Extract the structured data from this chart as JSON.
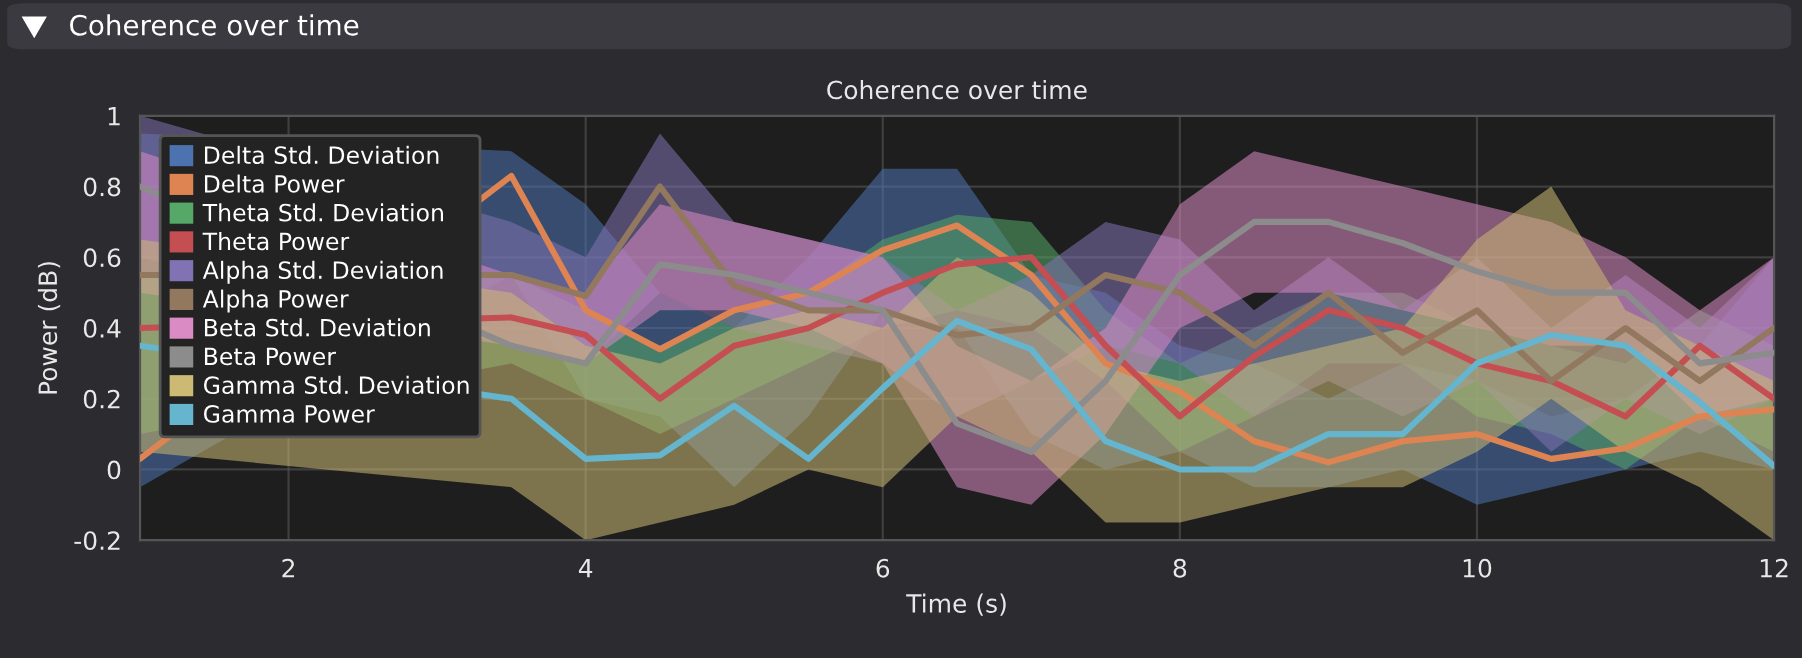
{
  "chart_data": {
    "type": "line",
    "title": "Coherence over time",
    "xlabel": "Time (s)",
    "ylabel": "Power (dB)",
    "annotations": [
      "Coherence over time"
    ],
    "x": [
      1,
      3.5,
      4,
      4.5,
      5,
      5.5,
      6,
      6.5,
      7,
      7.5,
      8,
      8.5,
      9,
      9.5,
      10,
      10.5,
      11,
      11.5,
      12
    ],
    "xlim": [
      1,
      12
    ],
    "xticks": [
      2,
      4,
      6,
      8,
      10,
      12
    ],
    "ylim": [
      -0.2,
      1
    ],
    "yticks": [
      -0.2,
      0,
      0.2,
      0.4,
      0.6,
      0.8,
      1
    ],
    "grid": true,
    "legend": "top left",
    "marker": "none",
    "line_style": "solid",
    "series": [
      {
        "name": "Delta Std. Deviation",
        "type": "area",
        "color": "#4c72b0",
        "values": [
          null,
          null,
          null,
          null,
          null,
          null,
          null,
          null,
          null,
          null,
          null,
          null,
          null,
          null,
          null,
          null,
          null,
          null,
          null
        ],
        "lower": [
          -0.05,
          0.55,
          0.2,
          0.15,
          -0.05,
          0.15,
          0.45,
          0.4,
          0.1,
          0.0,
          0.05,
          -0.05,
          -0.05,
          0.0,
          -0.1,
          -0.05,
          0.0,
          0.05,
          0.0
        ],
        "upper": [
          0.95,
          0.9,
          0.75,
          0.5,
          0.4,
          0.6,
          0.85,
          0.85,
          0.55,
          0.5,
          0.35,
          0.3,
          0.2,
          0.3,
          0.25,
          0.15,
          0.2,
          0.35,
          0.6
        ]
      },
      {
        "name": "Delta Power",
        "color": "#dd8452",
        "values": [
          0.03,
          0.83,
          0.45,
          0.34,
          0.45,
          0.5,
          0.62,
          0.69,
          0.55,
          0.3,
          0.22,
          0.08,
          0.02,
          0.08,
          0.1,
          0.03,
          0.06,
          0.15,
          0.17
        ]
      },
      {
        "name": "Theta Std. Deviation",
        "type": "area",
        "color": "#55a868",
        "values": [
          null,
          null,
          null,
          null,
          null,
          null,
          null,
          null,
          null,
          null,
          null,
          null,
          null,
          null,
          null,
          null,
          null,
          null,
          null
        ],
        "lower": [
          0.1,
          0.3,
          0.2,
          0.1,
          0.2,
          0.3,
          0.4,
          0.45,
          0.4,
          0.25,
          0.05,
          0.15,
          0.3,
          0.3,
          0.15,
          0.1,
          0.0,
          0.15,
          0.05
        ],
        "upper": [
          0.55,
          0.55,
          0.45,
          0.35,
          0.45,
          0.5,
          0.65,
          0.72,
          0.7,
          0.45,
          0.3,
          0.4,
          0.5,
          0.5,
          0.4,
          0.35,
          0.3,
          0.45,
          0.35
        ]
      },
      {
        "name": "Theta Power",
        "color": "#c44e52",
        "values": [
          0.4,
          0.43,
          0.38,
          0.2,
          0.35,
          0.4,
          0.5,
          0.58,
          0.6,
          0.35,
          0.15,
          0.32,
          0.45,
          0.4,
          0.3,
          0.25,
          0.15,
          0.35,
          0.2
        ]
      },
      {
        "name": "Alpha Std. Deviation",
        "type": "area",
        "color": "#8172b3",
        "values": [
          null,
          null,
          null,
          null,
          null,
          null,
          null,
          null,
          null,
          null,
          null,
          null,
          null,
          null,
          null,
          null,
          null,
          null,
          null
        ],
        "lower": [
          0.6,
          0.35,
          0.3,
          0.5,
          0.4,
          0.35,
          0.3,
          0.15,
          0.25,
          0.35,
          0.3,
          0.15,
          0.25,
          0.15,
          0.25,
          0.05,
          0.2,
          0.1,
          0.2
        ],
        "upper": [
          1.0,
          0.7,
          0.6,
          0.95,
          0.7,
          0.65,
          0.6,
          0.45,
          0.55,
          0.7,
          0.65,
          0.45,
          0.6,
          0.45,
          0.6,
          0.4,
          0.55,
          0.4,
          0.6
        ]
      },
      {
        "name": "Alpha Power",
        "color": "#937860",
        "values": [
          0.55,
          0.55,
          0.49,
          0.8,
          0.52,
          0.45,
          0.45,
          0.38,
          0.4,
          0.55,
          0.5,
          0.35,
          0.5,
          0.33,
          0.45,
          0.25,
          0.4,
          0.25,
          0.4
        ]
      },
      {
        "name": "Beta Std. Deviation",
        "type": "area",
        "color": "#da8bc3",
        "values": [
          null,
          null,
          null,
          null,
          null,
          null,
          null,
          null,
          null,
          null,
          null,
          null,
          null,
          null,
          null,
          null,
          null,
          null,
          null
        ],
        "lower": [
          0.5,
          0.35,
          0.3,
          0.45,
          0.45,
          0.4,
          0.3,
          -0.05,
          -0.1,
          0.1,
          0.4,
          0.5,
          0.5,
          0.45,
          0.4,
          0.35,
          0.35,
          0.15,
          0.2
        ],
        "upper": [
          0.9,
          0.55,
          0.5,
          0.75,
          0.7,
          0.65,
          0.6,
          0.35,
          0.25,
          0.4,
          0.75,
          0.9,
          0.85,
          0.8,
          0.75,
          0.7,
          0.6,
          0.45,
          0.6
        ]
      },
      {
        "name": "Beta Power",
        "color": "#8c8c8c",
        "values": [
          0.8,
          0.35,
          0.3,
          0.58,
          0.55,
          0.5,
          0.45,
          0.13,
          0.05,
          0.25,
          0.55,
          0.7,
          0.7,
          0.64,
          0.56,
          0.5,
          0.5,
          0.3,
          0.33
        ]
      },
      {
        "name": "Gamma Std. Deviation",
        "type": "area",
        "color": "#ccb974",
        "values": [
          null,
          null,
          null,
          null,
          null,
          null,
          null,
          null,
          null,
          null,
          null,
          null,
          null,
          null,
          null,
          null,
          null,
          null,
          null
        ],
        "lower": [
          0.05,
          -0.05,
          -0.2,
          -0.15,
          -0.1,
          0.0,
          -0.05,
          0.15,
          0.05,
          -0.15,
          -0.15,
          -0.1,
          -0.05,
          -0.05,
          0.05,
          0.2,
          0.05,
          -0.05,
          -0.2
        ],
        "upper": [
          0.65,
          0.5,
          0.35,
          0.3,
          0.4,
          0.45,
          0.4,
          0.6,
          0.5,
          0.3,
          0.25,
          0.3,
          0.35,
          0.4,
          0.65,
          0.8,
          0.45,
          0.35,
          0.25
        ]
      },
      {
        "name": "Gamma Power",
        "color": "#64b5cd",
        "values": [
          0.35,
          0.2,
          0.03,
          0.04,
          0.18,
          0.03,
          0.23,
          0.42,
          0.34,
          0.08,
          0.0,
          0.0,
          0.1,
          0.1,
          0.3,
          0.38,
          0.35,
          0.19,
          0.01
        ]
      }
    ]
  }
}
